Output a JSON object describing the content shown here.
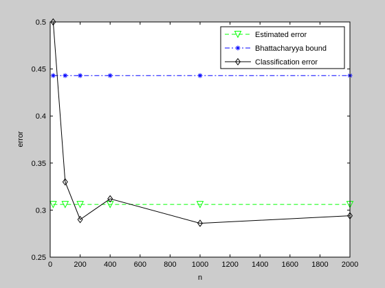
{
  "chart_data": {
    "type": "line",
    "title": "",
    "xlabel": "n",
    "ylabel": "error",
    "xlim": [
      0,
      2000
    ],
    "ylim": [
      0.25,
      0.5
    ],
    "xticks": [
      0,
      200,
      400,
      600,
      800,
      1000,
      1200,
      1400,
      1600,
      1800,
      2000
    ],
    "yticks": [
      0.25,
      0.3,
      0.35,
      0.4,
      0.45,
      0.5
    ],
    "ytick_labels": [
      "0.25",
      "0.3",
      "0.35",
      "0.4",
      "0.45",
      "0.5"
    ],
    "grid": false,
    "legend_position": "top-right",
    "x": [
      20,
      100,
      200,
      400,
      1000,
      2000
    ],
    "series": [
      {
        "name": "Estimated error",
        "color": "#00ff00",
        "line_style": "dashed",
        "marker": "triangle-down",
        "values": [
          0.306,
          0.306,
          0.306,
          0.306,
          0.306,
          0.306
        ]
      },
      {
        "name": "Bhattacharyya bound",
        "color": "#0000ff",
        "line_style": "dash-dot",
        "marker": "asterisk",
        "values": [
          0.443,
          0.443,
          0.443,
          0.443,
          0.443,
          0.443
        ]
      },
      {
        "name": "Classification error",
        "color": "#000000",
        "line_style": "solid",
        "marker": "diamond",
        "values": [
          0.5,
          0.33,
          0.29,
          0.312,
          0.286,
          0.294
        ]
      }
    ]
  }
}
